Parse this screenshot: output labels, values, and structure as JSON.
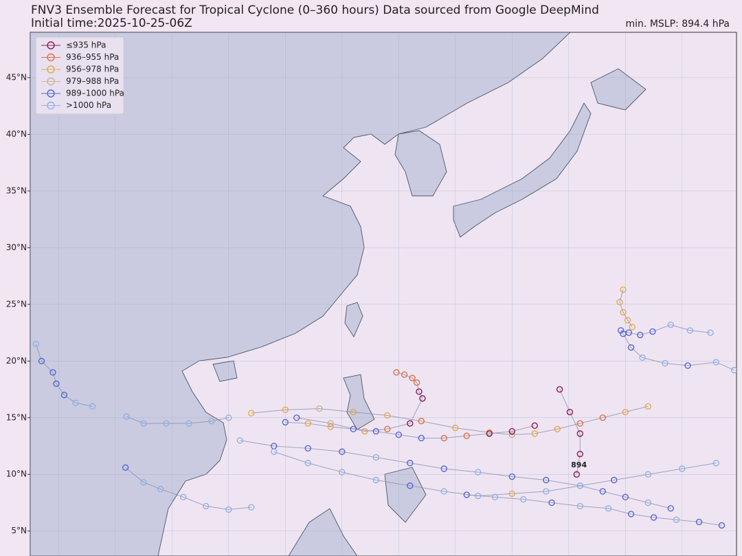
{
  "header": {
    "title": "FNV3 Ensemble Forecast for Tropical Cyclone (0–360 hours) Data sourced from Google DeepMind",
    "subtitle": "Initial time:2025-10-25-06Z",
    "min_mslp": "min. MSLP: 894.4 hPa"
  },
  "map": {
    "xlim": [
      92.5,
      154.8
    ],
    "ylim": [
      2.8,
      49
    ],
    "xticks": [
      95,
      100,
      105,
      110,
      115,
      120,
      125,
      130,
      135,
      140,
      145,
      150
    ],
    "yticks": [
      {
        "value": 45,
        "label": "45°N"
      },
      {
        "value": 40,
        "label": "40°N"
      },
      {
        "value": 35,
        "label": "35°N"
      },
      {
        "value": 30,
        "label": "30°N"
      },
      {
        "value": 25,
        "label": "25°N"
      },
      {
        "value": 20,
        "label": "20°N"
      },
      {
        "value": 15,
        "label": "15°N"
      },
      {
        "value": 10,
        "label": "10°N"
      },
      {
        "value": 5,
        "label": "5°N"
      }
    ],
    "grid": true
  },
  "legend": [
    {
      "label": "≤935 hPa",
      "color": "#8b1a5a"
    },
    {
      "label": "936–955 hPa",
      "color": "#e07040"
    },
    {
      "label": "956–978 hPa",
      "color": "#e8a848"
    },
    {
      "label": "979–988 hPa",
      "color": "#c8b493"
    },
    {
      "label": "989–1000 hPa",
      "color": "#5566d6"
    },
    {
      "label": ">1000 hPa",
      "color": "#92b0e6"
    }
  ],
  "tracks": [
    {
      "lon": [
        139.2,
        140.1,
        141,
        141,
        140.7
      ],
      "lat": [
        17.5,
        15.5,
        13.6,
        11.8,
        10.0
      ],
      "cls": [
        0,
        0,
        0,
        0,
        0
      ]
    },
    {
      "lon": [
        124.8,
        125.5,
        126.2,
        126.6,
        126.8,
        127.1,
        126,
        124,
        122,
        119,
        116
      ],
      "lat": [
        19.0,
        18.8,
        18.5,
        18.1,
        17.3,
        16.7,
        14.5,
        14.0,
        13.8,
        14.5,
        15.0
      ],
      "cls": [
        1,
        1,
        1,
        1,
        0,
        0,
        0,
        1,
        2,
        3,
        4
      ]
    },
    {
      "lon": [
        144.8,
        144.5,
        144.8,
        145.2,
        145.6
      ],
      "lat": [
        26.3,
        25.2,
        24.3,
        23.6,
        23.0
      ],
      "cls": [
        2,
        2,
        2,
        2,
        2
      ]
    },
    {
      "lon": [
        144.6,
        145.3,
        146.3,
        147.4,
        149,
        150.7,
        152.5
      ],
      "lat": [
        22.7,
        22.5,
        22.3,
        22.6,
        23.2,
        22.7,
        22.5
      ],
      "cls": [
        4,
        4,
        4,
        4,
        5,
        5,
        5
      ]
    },
    {
      "lon": [
        144.8,
        145.5,
        146.5,
        148.5,
        150.5,
        153,
        154.6
      ],
      "lat": [
        22.4,
        21.2,
        20.3,
        19.8,
        19.6,
        19.9,
        19.2
      ],
      "cls": [
        4,
        4,
        5,
        5,
        4,
        5,
        5
      ]
    },
    {
      "lon": [
        101,
        102.5,
        104.5,
        106.5,
        108.5,
        110
      ],
      "lat": [
        15.1,
        14.5,
        14.5,
        14.5,
        14.7,
        15
      ],
      "cls": [
        5,
        5,
        5,
        5,
        5,
        5
      ]
    },
    {
      "lon": [
        100.9,
        102.5,
        104,
        106,
        108,
        110,
        112
      ],
      "lat": [
        10.6,
        9.3,
        8.7,
        8.0,
        7.2,
        6.9,
        7.1
      ],
      "cls": [
        4,
        5,
        5,
        5,
        5,
        5,
        5
      ]
    },
    {
      "lon": [
        149,
        147,
        145,
        143,
        141,
        138,
        135,
        132,
        129,
        126,
        123,
        120,
        117,
        114,
        111
      ],
      "lat": [
        7,
        7.5,
        8,
        8.5,
        9,
        9.5,
        9.8,
        10.2,
        10.5,
        11,
        11.5,
        12,
        12.3,
        12.5,
        13
      ],
      "cls": [
        4,
        5,
        4,
        4,
        5,
        4,
        4,
        5,
        4,
        4,
        5,
        4,
        4,
        4,
        5
      ]
    },
    {
      "lon": [
        153,
        150,
        147,
        144,
        141,
        138,
        135,
        132,
        129,
        126,
        123,
        120,
        117,
        114
      ],
      "lat": [
        11,
        10.5,
        10,
        9.5,
        9,
        8.5,
        8.3,
        8.1,
        8.5,
        9,
        9.5,
        10.2,
        11,
        12
      ],
      "cls": [
        5,
        5,
        5,
        4,
        5,
        5,
        2,
        5,
        5,
        4,
        5,
        5,
        5,
        5
      ]
    },
    {
      "lon": [
        147,
        145,
        143,
        141,
        139,
        137,
        135,
        133,
        130,
        127,
        124,
        121,
        118,
        115,
        112
      ],
      "lat": [
        16,
        15.5,
        15,
        14.5,
        14,
        13.6,
        13.5,
        13.7,
        14.1,
        14.7,
        15.2,
        15.5,
        15.8,
        15.7,
        15.4
      ],
      "cls": [
        2,
        2,
        1,
        1,
        2,
        2,
        3,
        2,
        2,
        1,
        2,
        2,
        3,
        2,
        2
      ]
    },
    {
      "lon": [
        137,
        135,
        133,
        131,
        129,
        127,
        125,
        123,
        121,
        119,
        117,
        115
      ],
      "lat": [
        14.3,
        13.8,
        13.6,
        13.4,
        13.2,
        13.2,
        13.5,
        13.8,
        14,
        14.2,
        14.5,
        14.6
      ],
      "cls": [
        0,
        0,
        0,
        1,
        1,
        4,
        4,
        4,
        4,
        2,
        2,
        4
      ]
    },
    {
      "lon": [
        153.5,
        151.5,
        149.5,
        147.5,
        145.5,
        143.5,
        141,
        138.5,
        136,
        133.5,
        131
      ],
      "lat": [
        5.5,
        5.8,
        6,
        6.2,
        6.5,
        7,
        7.2,
        7.5,
        7.8,
        8,
        8.2
      ],
      "cls": [
        4,
        4,
        5,
        4,
        4,
        5,
        5,
        4,
        5,
        5,
        4
      ]
    },
    {
      "lon": [
        98,
        96.5,
        95.5,
        94.8,
        94.5,
        93.5,
        93
      ],
      "lat": [
        16,
        16.3,
        17,
        18,
        19,
        20,
        21.5
      ],
      "cls": [
        5,
        5,
        4,
        4,
        4,
        4,
        5
      ]
    }
  ],
  "annotation": {
    "text": "894",
    "lon": 140.9,
    "lat": 10.8
  }
}
